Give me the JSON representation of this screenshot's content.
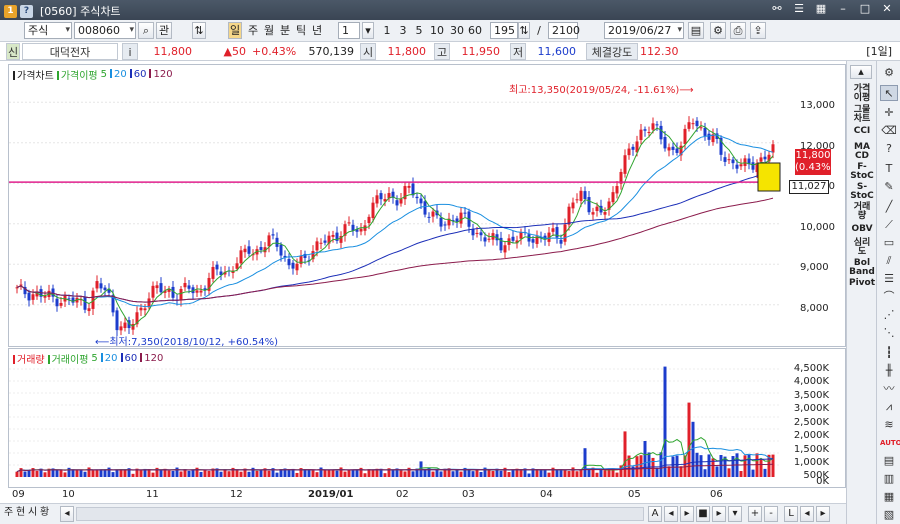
{
  "window": {
    "title": "[0560] 주식차트",
    "icon_label": "1",
    "help_label": "?"
  },
  "toolbar": {
    "market": "주식",
    "code": "008060",
    "view_label": "관",
    "periods": [
      "일",
      "주",
      "월",
      "분",
      "틱",
      "년"
    ],
    "active_period": "일",
    "interval_value": "1",
    "interval_quick": [
      "1",
      "3",
      "5",
      "10",
      "30",
      "60"
    ],
    "bar_count": "195",
    "separator": "/",
    "total_bars": "2100",
    "date": "2019/06/27"
  },
  "quote": {
    "tag": "신",
    "name": "대덕전자",
    "info_label": "i",
    "price": "11,800",
    "change": "▲50",
    "change_pct": "+0.43%",
    "volume": "570,139",
    "open_label": "시",
    "open": "11,800",
    "high_label": "고",
    "high": "11,950",
    "low_label": "저",
    "low": "11,600",
    "strength_label": "체결강도",
    "strength": "112.30",
    "period_tag": "[1일]"
  },
  "price_pane": {
    "legend": [
      {
        "text": "가격차트",
        "color": "#222222"
      },
      {
        "text": "가격이평",
        "color": "#2fa52f"
      },
      {
        "text": "5",
        "color": "#2fa52f"
      },
      {
        "text": "20",
        "color": "#1a8fe0"
      },
      {
        "text": "60",
        "color": "#1c2fb8"
      },
      {
        "text": "120",
        "color": "#8b1c4c"
      }
    ],
    "y_ticks": [
      "13,000",
      "12,000",
      "11,000",
      "10,000",
      "9,000",
      "8,000"
    ],
    "high_annotation": "최고:13,350(2019/05/24, -11.61%)⟶",
    "low_annotation": "⟵최저:7,350(2018/10/12, +60.54%)",
    "last_price_box": "11,800",
    "last_pct_box": "(0.43%)",
    "line_label": "11,027"
  },
  "volume_pane": {
    "legend": [
      {
        "text": "거래량",
        "color": "#e0202a"
      },
      {
        "text": "거래이평",
        "color": "#2fa52f"
      },
      {
        "text": "5",
        "color": "#2fa52f"
      },
      {
        "text": "20",
        "color": "#1a8fe0"
      },
      {
        "text": "60",
        "color": "#1c2fb8"
      },
      {
        "text": "120",
        "color": "#8b1c4c"
      }
    ],
    "y_ticks": [
      "4,500K",
      "4,000K",
      "3,500K",
      "3,000K",
      "2,500K",
      "2,000K",
      "1,500K",
      "1,000K",
      "500K",
      "0K"
    ]
  },
  "x_axis": [
    "09",
    "10",
    "11",
    "12",
    "2019/01",
    "02",
    "03",
    "04",
    "05",
    "06"
  ],
  "bottom": {
    "tabs": [
      "주",
      "현",
      "시",
      "황"
    ],
    "scroll_left": "◂",
    "controls": [
      "A",
      "◂",
      "▸",
      "■",
      "▸",
      "▾",
      "+",
      "-",
      "L",
      "◂",
      "▸"
    ]
  },
  "indicator_sidebar": [
    "가격\n이평",
    "그물\n차트",
    "CCI",
    "MA\nCD",
    "F-\nStoC",
    "S-\nStoC",
    "거래\n량",
    "OBV",
    "심리\n도",
    "Bol\nBand",
    "Pivot"
  ],
  "colors": {
    "up": "#e0202a",
    "down": "#1c3ccc",
    "hline": "#e0208c",
    "highlight": "#f5e400"
  },
  "chart_data": {
    "type": "candlestick",
    "title": "가격차트",
    "ylim": [
      7300,
      13500
    ],
    "x_start": "2018-09",
    "x_end": "2019-06-27",
    "series_close": [
      8350,
      8300,
      8250,
      8200,
      8150,
      8100,
      8080,
      8000,
      8500,
      8300,
      7500,
      7350,
      7800,
      8200,
      8400,
      8350,
      8200,
      8450,
      8300,
      8600,
      8900,
      8800,
      9100,
      9400,
      9300,
      9600,
      9500,
      8900,
      9000,
      9300,
      9500,
      9600,
      9800,
      9950,
      9700,
      10400,
      10600,
      10700,
      10600,
      10900,
      10500,
      10200,
      10000,
      10100,
      10200,
      9900,
      9700,
      9600,
      9500,
      9600,
      9650,
      9700,
      9600,
      9750,
      9700,
      10500,
      10700,
      10400,
      10200,
      10600,
      11500,
      11800,
      12300,
      12500,
      12000,
      11800,
      12000,
      12600,
      12300,
      12100,
      11700,
      11500,
      11400,
      11500,
      11600,
      11800
    ],
    "horizontal_line": 11027,
    "high": 13350,
    "low": 7350
  }
}
